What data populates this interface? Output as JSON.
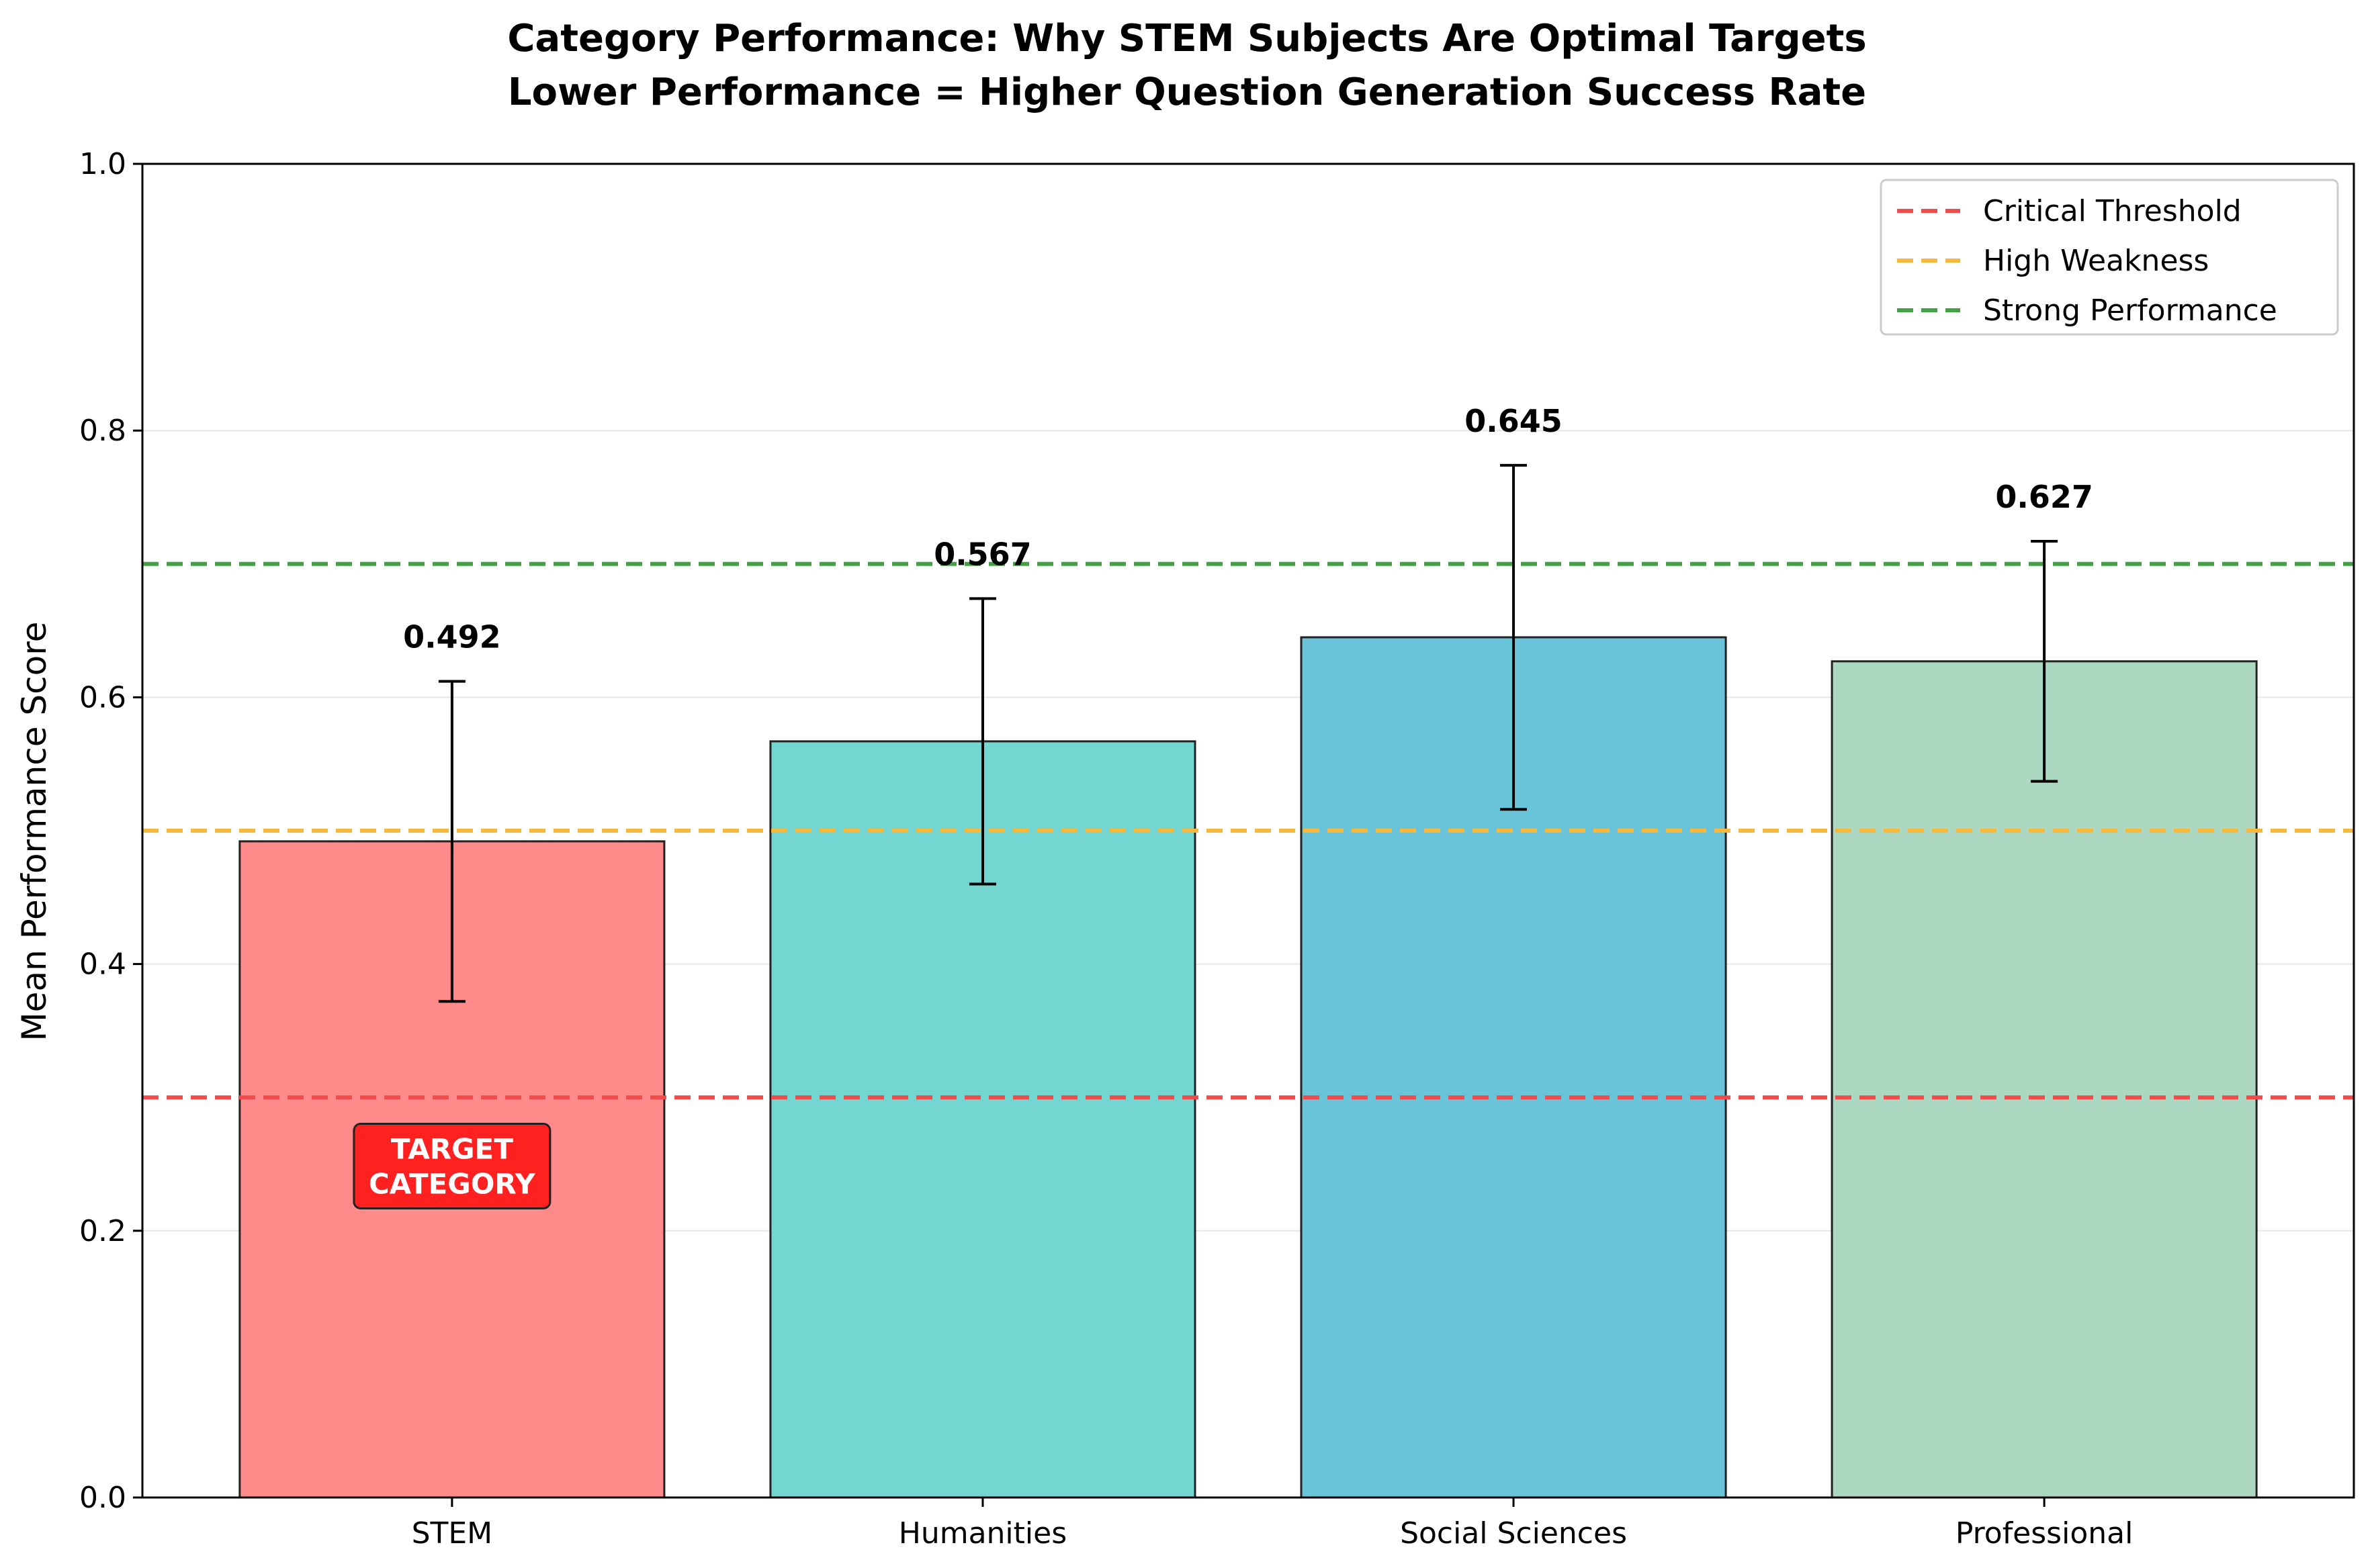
{
  "chart_data": {
    "type": "bar",
    "title": "Category Performance: Why STEM Subjects Are Optimal Targets",
    "subtitle": "Lower Performance = Higher Question Generation Success Rate",
    "xlabel": "",
    "ylabel": "Mean Performance Score",
    "ylim": [
      0,
      1.0
    ],
    "yticks": [
      "0.0",
      "0.2",
      "0.4",
      "0.6",
      "0.8",
      "1.0"
    ],
    "categories": [
      "STEM",
      "Humanities",
      "Social Sciences",
      "Professional"
    ],
    "values": [
      0.492,
      0.567,
      0.645,
      0.627
    ],
    "value_labels": [
      "0.492",
      "0.567",
      "0.645",
      "0.627"
    ],
    "errors": [
      0.12,
      0.107,
      0.129,
      0.09
    ],
    "bar_colors": [
      "#ff8a8a",
      "#74d6d0",
      "#6ac4d9",
      "#acd8c2"
    ],
    "reference_lines": [
      {
        "label": "Critical Threshold",
        "value": 0.3,
        "color": "#ef4b4b"
      },
      {
        "label": "High Weakness",
        "value": 0.5,
        "color": "#f6b93b"
      },
      {
        "label": "Strong Performance",
        "value": 0.7,
        "color": "#43a043"
      }
    ],
    "annotation": {
      "lines": [
        "TARGET",
        "CATEGORY"
      ],
      "category": "STEM",
      "y": 0.247,
      "color": "#ff2020"
    },
    "legend": "top-right",
    "grid": "y"
  }
}
